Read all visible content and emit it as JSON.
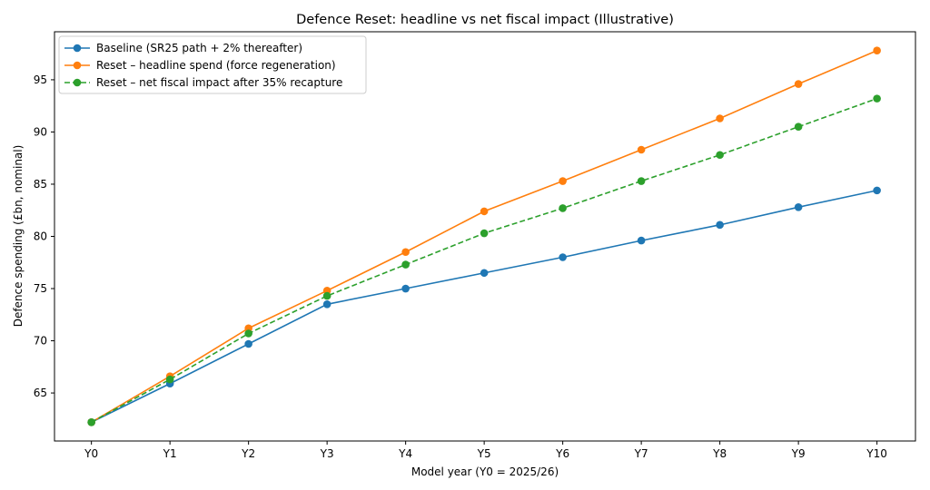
{
  "chart_data": {
    "type": "line",
    "title": "Defence Reset: headline vs net fiscal impact (Illustrative)",
    "xlabel": "Model year (Y0 = 2025/26)",
    "ylabel": "Defence spending (£bn, nominal)",
    "categories": [
      "Y0",
      "Y1",
      "Y2",
      "Y3",
      "Y4",
      "Y5",
      "Y6",
      "Y7",
      "Y8",
      "Y9",
      "Y10"
    ],
    "xlim": [
      -0.47,
      10.49
    ],
    "ylim": [
      60.4,
      99.6
    ],
    "yticks": [
      65,
      70,
      75,
      80,
      85,
      90,
      95
    ],
    "grid": false,
    "legend_position": "top-left",
    "series": [
      {
        "name": "Baseline (SR25 path + 2% thereafter)",
        "color": "#1f77b4",
        "dashed": false,
        "values": [
          62.2,
          65.9,
          69.7,
          73.5,
          75.0,
          76.5,
          78.0,
          79.6,
          81.1,
          82.8,
          84.4
        ]
      },
      {
        "name": "Reset – headline spend (force regeneration)",
        "color": "#ff7f0e",
        "dashed": false,
        "values": [
          62.2,
          66.6,
          71.2,
          74.8,
          78.5,
          82.4,
          85.3,
          88.3,
          91.3,
          94.6,
          97.8
        ]
      },
      {
        "name": "Reset – net fiscal impact after 35% recapture",
        "color": "#2ca02c",
        "dashed": true,
        "values": [
          62.2,
          66.3,
          70.7,
          74.3,
          77.3,
          80.3,
          82.7,
          85.3,
          87.8,
          90.5,
          93.2
        ]
      }
    ]
  }
}
